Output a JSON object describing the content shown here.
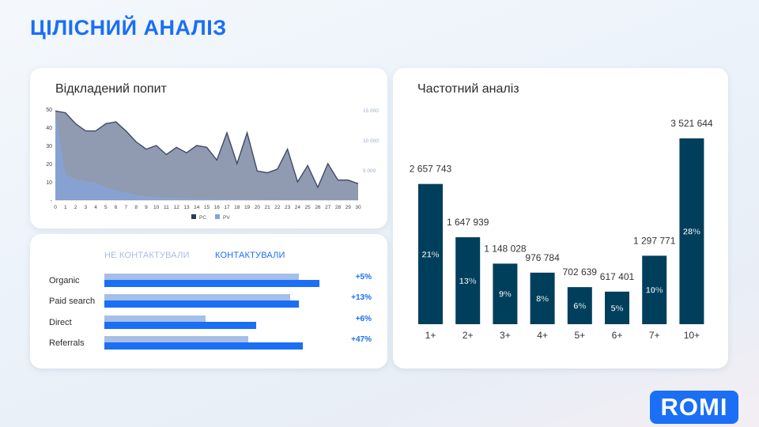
{
  "page_title": "ЦІЛІСНИЙ АНАЛІЗ",
  "logo_text": "ROMI",
  "colors": {
    "accent": "#1a6ff5",
    "dark_bar": "#003f5c",
    "area_pc": "#8a96ad",
    "area_pv": "#86a3d8"
  },
  "chart_data": [
    {
      "type": "area",
      "title": "Відкладений попит",
      "x": [
        0,
        1,
        2,
        3,
        4,
        5,
        6,
        7,
        8,
        9,
        10,
        11,
        12,
        13,
        14,
        15,
        16,
        17,
        18,
        19,
        20,
        21,
        22,
        23,
        24,
        25,
        26,
        27,
        28,
        29,
        30
      ],
      "xlim": [
        0,
        30
      ],
      "y_left_ticks": [
        0,
        10,
        20,
        30,
        40,
        50
      ],
      "y_left_tick_labels": [
        "-",
        "10",
        "20",
        "30",
        "40",
        "50"
      ],
      "y_right_ticks": [
        5000,
        10000,
        15000
      ],
      "y_right_tick_labels": [
        "5 000",
        "10 000",
        "15 000"
      ],
      "ylim": [
        0,
        50
      ],
      "legend": {
        "placement": "bottom"
      },
      "series": [
        {
          "name": "PC",
          "axis": "left",
          "values": [
            49,
            48,
            42,
            38,
            38,
            42,
            43,
            38,
            32,
            28,
            30,
            25,
            29,
            26,
            30,
            29,
            22,
            37,
            20,
            37,
            16,
            15,
            17,
            28,
            10,
            19,
            7,
            20,
            11,
            11,
            9
          ]
        },
        {
          "name": "PV",
          "axis": "right",
          "values": [
            14500,
            4200,
            3500,
            3100,
            2900,
            2100,
            1600,
            1300,
            800,
            600,
            500,
            400,
            350,
            300,
            300,
            250,
            200,
            200,
            150,
            150,
            120,
            100,
            100,
            80,
            80,
            60,
            50,
            50,
            40,
            30,
            20
          ]
        }
      ]
    },
    {
      "type": "bar",
      "orientation": "horizontal",
      "series": [
        {
          "name": "НЕ КОНТАКТУВАЛИ",
          "values": [
            92,
            88,
            48,
            68
          ]
        },
        {
          "name": "КОНТАКТУВАЛИ",
          "values": [
            102,
            92,
            72,
            94
          ]
        }
      ],
      "categories": [
        "Organic",
        "Paid search",
        "Direct",
        "Referrals"
      ],
      "deltas": [
        "+5%",
        "+13%",
        "+6%",
        "+47%"
      ]
    },
    {
      "type": "bar",
      "title": "Частотний аналіз",
      "categories": [
        "1+",
        "2+",
        "3+",
        "4+",
        "5+",
        "6+",
        "7+",
        "10+"
      ],
      "values": [
        2657743,
        1647939,
        1148028,
        976784,
        702639,
        617401,
        1297771,
        3521644
      ],
      "value_labels": [
        "2 657 743",
        "1 647 939",
        "1 148 028",
        "976 784",
        "702 639",
        "617 401",
        "1 297 771",
        "3 521 644"
      ],
      "percent_labels": [
        "21%",
        "13%",
        "9%",
        "8%",
        "6%",
        "5%",
        "10%",
        "28%"
      ],
      "ylim": [
        0,
        3521644
      ]
    }
  ]
}
